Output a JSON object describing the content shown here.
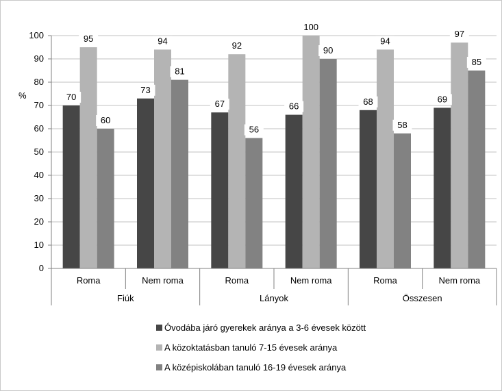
{
  "chart_data": {
    "type": "bar",
    "title": "",
    "ylabel": "%",
    "ylim": [
      0,
      100
    ],
    "yticks": [
      0,
      10,
      20,
      30,
      40,
      50,
      60,
      70,
      80,
      90,
      100
    ],
    "grid": true,
    "legend_position": "bottom",
    "groups": [
      {
        "label": "Fiúk",
        "categories": [
          "Roma",
          "Nem roma"
        ]
      },
      {
        "label": "Lányok",
        "categories": [
          "Roma",
          "Nem roma"
        ]
      },
      {
        "label": "Összesen",
        "categories": [
          "Roma",
          "Nem roma"
        ]
      }
    ],
    "categories": [
      "Roma",
      "Nem roma",
      "Roma",
      "Nem roma",
      "Roma",
      "Nem roma"
    ],
    "series": [
      {
        "name": "Óvodába járó gyerekek aránya a 3-6 évesek között",
        "color": "#464646",
        "values": [
          70,
          73,
          67,
          66,
          68,
          69
        ]
      },
      {
        "name": "A közoktatásban tanuló 7-15 évesek aránya",
        "color": "#b4b4b4",
        "values": [
          95,
          94,
          92,
          100,
          94,
          97
        ]
      },
      {
        "name": "A középiskolában tanuló 16-19 évesek aránya",
        "color": "#828282",
        "values": [
          60,
          81,
          56,
          90,
          58,
          85
        ]
      }
    ]
  }
}
